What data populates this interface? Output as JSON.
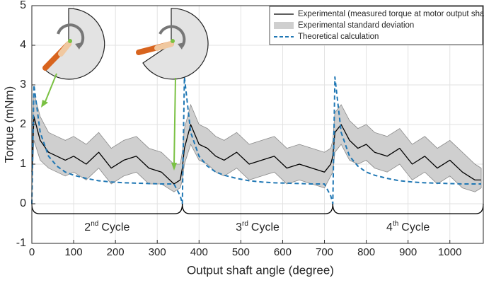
{
  "chart_data": {
    "type": "line",
    "x_label": "Output shaft angle (degree)",
    "y_label": "Torque (mNm)",
    "x": [
      0,
      5,
      20,
      40,
      60,
      80,
      100,
      130,
      160,
      190,
      220,
      250,
      280,
      310,
      340,
      355,
      360,
      365,
      380,
      400,
      420,
      440,
      460,
      490,
      520,
      550,
      580,
      610,
      640,
      670,
      700,
      715,
      720,
      725,
      740,
      760,
      780,
      800,
      820,
      850,
      880,
      910,
      940,
      970,
      1000,
      1030,
      1060,
      1075
    ],
    "series": [
      {
        "name": "Experimental (measured torque at motor output shaft)",
        "color": "#000000",
        "values": [
          0.8,
          2.2,
          1.6,
          1.3,
          1.2,
          1.1,
          1.2,
          1.0,
          1.3,
          0.9,
          1.1,
          1.2,
          0.9,
          0.8,
          0.5,
          0.6,
          0.9,
          1.4,
          2.0,
          1.5,
          1.4,
          1.2,
          1.1,
          1.3,
          1.0,
          1.1,
          1.2,
          0.9,
          1.0,
          0.9,
          0.8,
          1.0,
          1.2,
          1.8,
          2.0,
          1.6,
          1.4,
          1.5,
          1.3,
          1.2,
          1.4,
          1.0,
          1.2,
          0.9,
          1.1,
          0.8,
          0.6,
          0.6
        ]
      },
      {
        "name": "Experimental standard deviation",
        "color": "#cfcfcf",
        "upper": [
          1.3,
          2.8,
          2.2,
          1.8,
          1.7,
          1.6,
          1.7,
          1.5,
          1.8,
          1.4,
          1.6,
          1.7,
          1.4,
          1.3,
          1.0,
          1.0,
          1.3,
          1.9,
          2.5,
          2.0,
          1.9,
          1.7,
          1.6,
          1.8,
          1.5,
          1.6,
          1.7,
          1.4,
          1.5,
          1.4,
          1.3,
          1.4,
          1.6,
          2.3,
          2.5,
          2.1,
          1.9,
          2.0,
          1.8,
          1.7,
          1.9,
          1.5,
          1.7,
          1.4,
          1.6,
          1.3,
          1.0,
          0.9
        ],
        "lower": [
          0.4,
          1.6,
          1.1,
          0.9,
          0.8,
          0.7,
          0.8,
          0.6,
          0.9,
          0.5,
          0.7,
          0.8,
          0.5,
          0.5,
          0.3,
          0.4,
          0.6,
          1.0,
          1.5,
          1.1,
          1.0,
          0.8,
          0.7,
          0.9,
          0.6,
          0.7,
          0.8,
          0.5,
          0.6,
          0.5,
          0.4,
          0.7,
          0.8,
          1.3,
          1.5,
          1.1,
          1.0,
          1.1,
          0.9,
          0.8,
          1.0,
          0.6,
          0.8,
          0.5,
          0.7,
          0.4,
          0.3,
          0.4
        ]
      },
      {
        "name": "Theoretical calculation",
        "color": "#1f77b4",
        "dashed": true,
        "values": [
          0,
          3.0,
          1.8,
          1.2,
          0.95,
          0.8,
          0.72,
          0.64,
          0.58,
          0.55,
          0.53,
          0.52,
          0.51,
          0.5,
          0.5,
          0.2,
          0,
          3.2,
          1.8,
          1.2,
          0.95,
          0.8,
          0.72,
          0.64,
          0.58,
          0.55,
          0.53,
          0.52,
          0.51,
          0.5,
          0.5,
          0.2,
          0,
          3.2,
          1.8,
          1.2,
          0.95,
          0.8,
          0.72,
          0.64,
          0.58,
          0.55,
          0.53,
          0.52,
          0.51,
          0.5,
          0.5,
          0.5
        ]
      }
    ],
    "cycles": [
      {
        "number": "2",
        "suffix": "nd",
        "text": "Cycle",
        "range": [
          0,
          360
        ]
      },
      {
        "number": "3",
        "suffix": "rd",
        "text": "Cycle",
        "range": [
          360,
          720
        ]
      },
      {
        "number": "4",
        "suffix": "th",
        "text": "Cycle",
        "range": [
          720,
          1080
        ]
      }
    ],
    "xlim": [
      0,
      1080
    ],
    "ylim": [
      -1,
      5
    ],
    "xticks": [
      0,
      100,
      200,
      300,
      400,
      500,
      600,
      700,
      800,
      900,
      1000
    ],
    "yticks": [
      -1,
      0,
      1,
      2,
      3,
      4,
      5
    ],
    "grid": true,
    "legend": "upper right"
  }
}
